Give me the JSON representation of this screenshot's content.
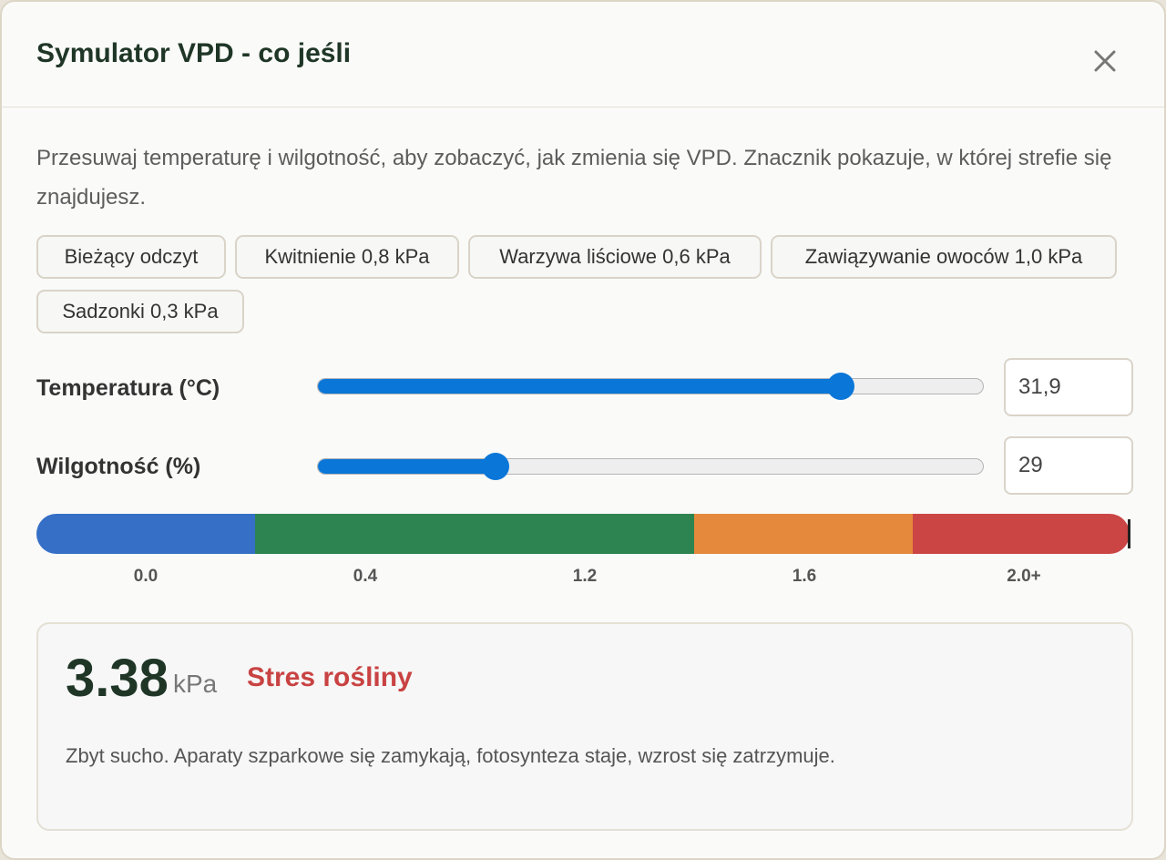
{
  "dialog": {
    "title": "Symulator VPD - co jeśli",
    "close_icon": "close-icon"
  },
  "description": "Przesuwaj temperaturę i wilgotność, aby zobaczyć, jak zmienia się VPD. Znacznik pokazuje, w której strefie się znajdujesz.",
  "presets": [
    {
      "label": "Bieżący odczyt"
    },
    {
      "label": "Kwitnienie 0,8 kPa"
    },
    {
      "label": "Warzywa liściowe 0,6 kPa"
    },
    {
      "label": "Zawiązywanie owoców 1,0 kPa"
    },
    {
      "label": "Sadzonki 0,3 kPa"
    }
  ],
  "temperature": {
    "label": "Temperatura (°C)",
    "value": "31,9",
    "slider_fraction": 0.785
  },
  "humidity": {
    "label": "Wilgotność (%)",
    "value": "29",
    "slider_fraction": 0.268
  },
  "scale": {
    "ticks": [
      "0.0",
      "0.4",
      "1.2",
      "1.6",
      "2.0+"
    ],
    "colors": [
      "#356fc6",
      "#2d8450",
      "#e5893d",
      "#cb4545"
    ]
  },
  "result": {
    "value": "3.38",
    "unit": "kPa",
    "status": "Stres rośliny",
    "status_color": "#c94242",
    "message": "Zbyt sucho. Aparaty szparkowe się zamykają, fotosynteza staje, wzrost się zatrzymuje."
  }
}
